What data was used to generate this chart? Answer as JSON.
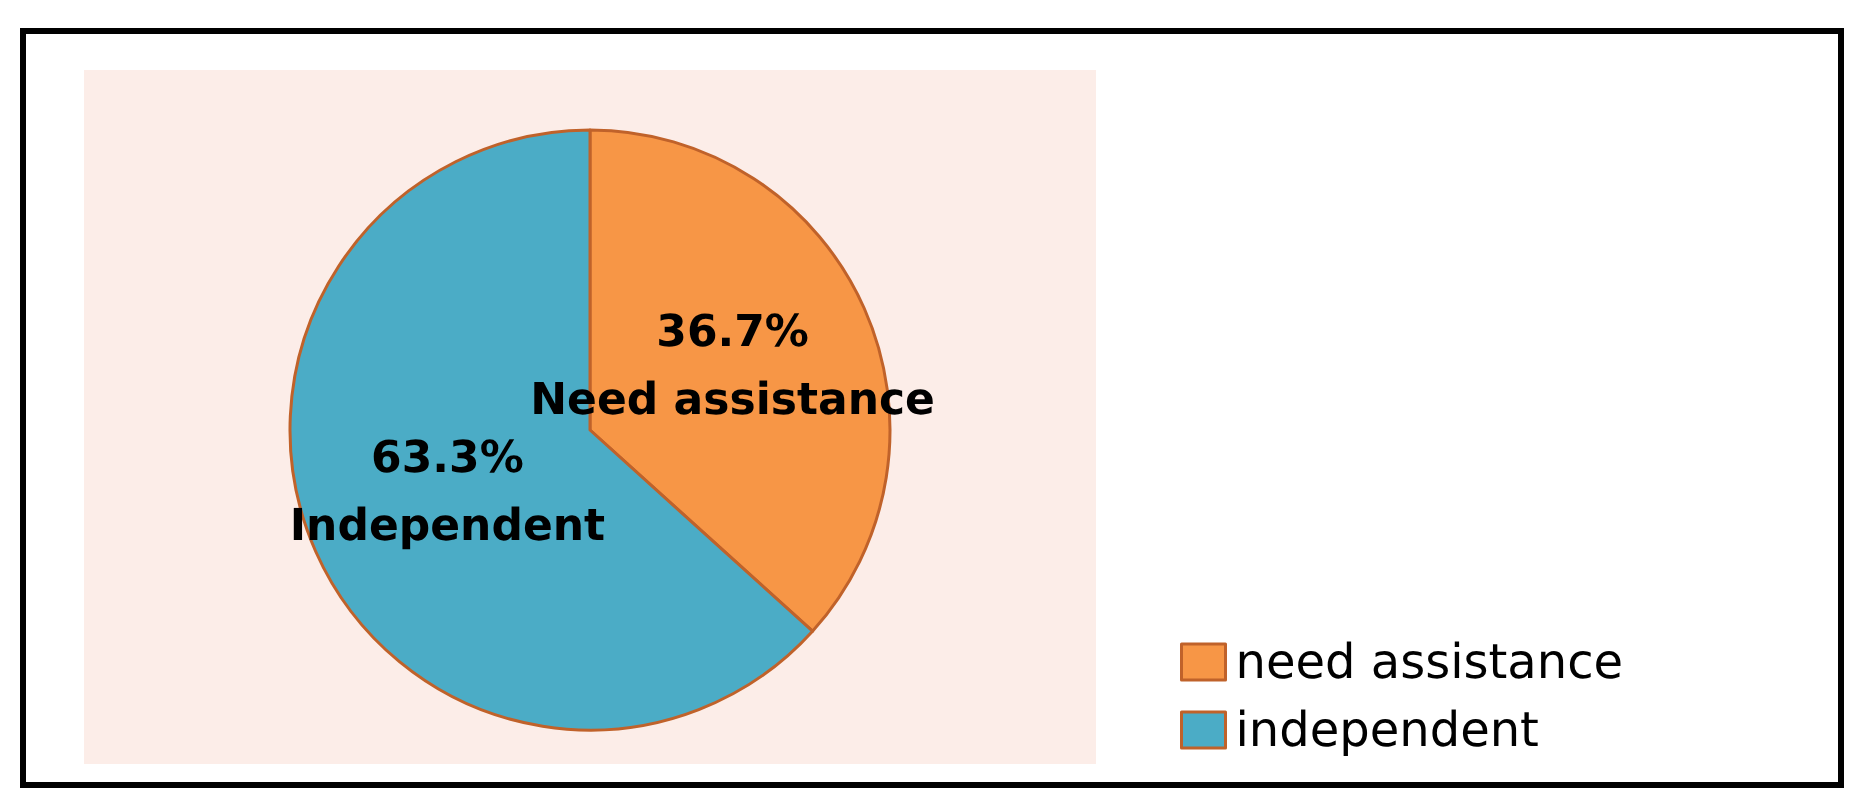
{
  "chart_data": {
    "type": "pie",
    "categories": [
      "need assistance",
      "independent"
    ],
    "values": [
      36.7,
      63.3
    ],
    "colors": [
      "#f79646",
      "#4bacc6"
    ],
    "value_labels": [
      "36.7%",
      "63.3%"
    ],
    "annotations": [
      "Need assistance",
      "Independent"
    ],
    "legend": "bottom right"
  }
}
